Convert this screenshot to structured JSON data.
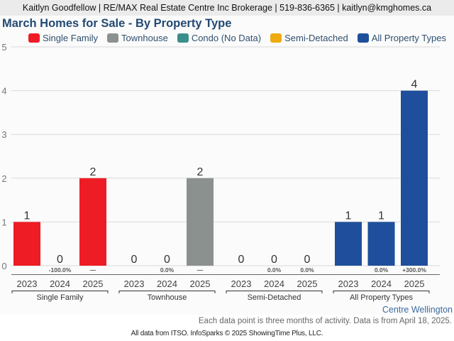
{
  "header": {
    "text": "Kaitlyn Goodfellow | RE/MAX Real Estate Centre Inc Brokerage | 519-836-6365 | kaitlyn@kmghomes.ca"
  },
  "region": "Centre Wellington",
  "note": "Each data point is three months of activity. Data is from April 18, 2025.",
  "footer": "All data from ITSO. InfoSparks © 2025 ShowingTime Plus, LLC.",
  "legend": [
    {
      "label": "Single Family",
      "color": "#ee1c25"
    },
    {
      "label": "Townhouse",
      "color": "#8a918f"
    },
    {
      "label": "Condo (No Data)",
      "color": "#3a8f8c"
    },
    {
      "label": "Semi-Detached",
      "color": "#eeaa11"
    },
    {
      "label": "All Property Types",
      "color": "#1f4f9c"
    }
  ],
  "chart_data": {
    "type": "bar",
    "title": "March Homes for Sale - By Property Type",
    "xlabel": "",
    "ylabel": "",
    "ylim": [
      0,
      5
    ],
    "yticks": [
      0,
      1,
      2,
      3,
      4,
      5
    ],
    "grid": true,
    "legend_position": "top",
    "groups": [
      {
        "name": "Single Family",
        "color": "#ee1c25",
        "years": [
          "2023",
          "2024",
          "2025"
        ],
        "values": [
          1,
          0,
          2
        ],
        "changes": [
          "",
          "-100.0%",
          "—"
        ]
      },
      {
        "name": "Townhouse",
        "color": "#8a918f",
        "years": [
          "2023",
          "2024",
          "2025"
        ],
        "values": [
          0,
          0,
          2
        ],
        "changes": [
          "",
          "0.0%",
          "—"
        ]
      },
      {
        "name": "Semi-Detached",
        "color": "#eeaa11",
        "years": [
          "2023",
          "2024",
          "2025"
        ],
        "values": [
          0,
          0,
          0
        ],
        "changes": [
          "",
          "0.0%",
          "0.0%"
        ]
      },
      {
        "name": "All Property Types",
        "color": "#1f4f9c",
        "years": [
          "2023",
          "2024",
          "2025"
        ],
        "values": [
          1,
          1,
          4
        ],
        "changes": [
          "",
          "0.0%",
          "+300.0%"
        ]
      }
    ]
  }
}
